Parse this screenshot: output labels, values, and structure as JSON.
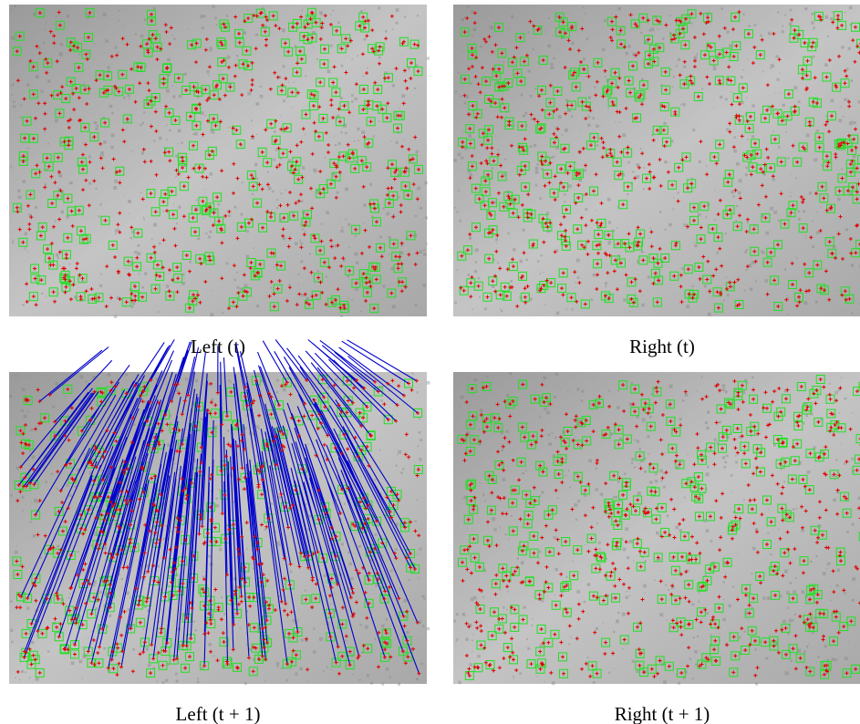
{
  "panels": [
    {
      "caption": "Left (t)"
    },
    {
      "caption": "Right (t)"
    },
    {
      "caption": "Left (t + 1)"
    },
    {
      "caption": "Right (t + 1)"
    }
  ]
}
